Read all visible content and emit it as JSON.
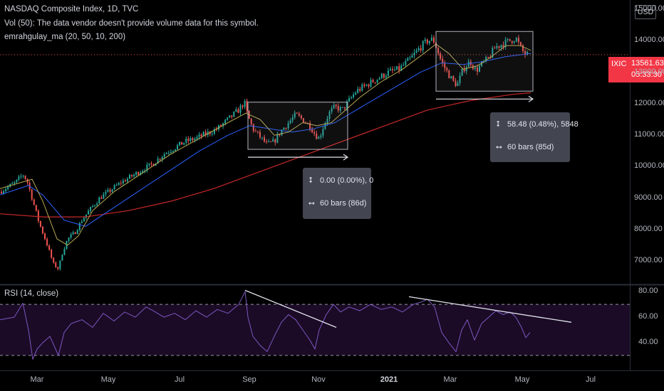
{
  "legend": {
    "title": "NASDAQ Composite Index, 1D, TVC",
    "volume_note": "Vol (50): The data vendor doesn't provide volume data for this symbol.",
    "indicator": "emrahgulay_ma (20, 50, 10, 200)"
  },
  "rsi_label": "RSI (14, close)",
  "currency": "USD",
  "price_tag": {
    "symbol": "IXIC",
    "value": "13561.63",
    "countdown": "05:33:30"
  },
  "measure_1": {
    "change": "0.00 (0.00%), 0",
    "range": "60 bars (86d)"
  },
  "measure_2": {
    "change": "58.48 (0.48%), 5848",
    "range": "60 bars (85d)"
  },
  "colors": {
    "up": "#26a69a",
    "down": "#ef5350",
    "ma20": "#b8a952",
    "ma50": "#2962ff",
    "ma200": "#c62828",
    "rsi": "#7e57c2"
  },
  "icons": {
    "price_range": "vertical-range-icon",
    "bars_range": "horizontal-range-icon"
  },
  "chart_data": [
    {
      "type": "candlestick",
      "title": "NASDAQ Composite Index, 1D, TVC",
      "x_ticks": [
        "Mar",
        "May",
        "Jul",
        "Sep",
        "Nov",
        "2021",
        "Mar",
        "May",
        "Jul"
      ],
      "y_ticks": [
        "15000.00",
        "14000.00",
        "13000.00",
        "12000.00",
        "11000.00",
        "10000.00",
        "9000.00",
        "8000.00",
        "7000.00"
      ],
      "ylim": [
        6300,
        15300
      ],
      "close_path": [
        [
          0,
          9200
        ],
        [
          22,
          9500
        ],
        [
          32,
          9750
        ],
        [
          38,
          9550
        ],
        [
          45,
          9000
        ],
        [
          55,
          8200
        ],
        [
          65,
          7600
        ],
        [
          75,
          6900
        ],
        [
          82,
          6750
        ],
        [
          88,
          7300
        ],
        [
          95,
          7700
        ],
        [
          105,
          7900
        ],
        [
          115,
          8300
        ],
        [
          125,
          8600
        ],
        [
          140,
          9000
        ],
        [
          155,
          9250
        ],
        [
          170,
          9500
        ],
        [
          185,
          9700
        ],
        [
          200,
          9900
        ],
        [
          215,
          10100
        ],
        [
          230,
          10400
        ],
        [
          245,
          10600
        ],
        [
          260,
          10800
        ],
        [
          275,
          10900
        ],
        [
          290,
          11050
        ],
        [
          305,
          11200
        ],
        [
          320,
          11500
        ],
        [
          335,
          11800
        ],
        [
          343,
          12050
        ],
        [
          348,
          11600
        ],
        [
          355,
          11200
        ],
        [
          365,
          10950
        ],
        [
          375,
          10700
        ],
        [
          385,
          10800
        ],
        [
          395,
          11150
        ],
        [
          405,
          11400
        ],
        [
          415,
          11650
        ],
        [
          425,
          11500
        ],
        [
          435,
          11300
        ],
        [
          443,
          11000
        ],
        [
          448,
          10900
        ],
        [
          455,
          11350
        ],
        [
          462,
          11700
        ],
        [
          470,
          11900
        ],
        [
          480,
          11800
        ],
        [
          490,
          12100
        ],
        [
          500,
          12400
        ],
        [
          515,
          12600
        ],
        [
          530,
          12800
        ],
        [
          545,
          13000
        ],
        [
          560,
          13100
        ],
        [
          575,
          13400
        ],
        [
          590,
          13800
        ],
        [
          600,
          14000
        ],
        [
          608,
          14050
        ],
        [
          614,
          13700
        ],
        [
          620,
          13300
        ],
        [
          628,
          13000
        ],
        [
          636,
          12700
        ],
        [
          642,
          12600
        ],
        [
          650,
          13100
        ],
        [
          660,
          13350
        ],
        [
          668,
          13050
        ],
        [
          676,
          13250
        ],
        [
          686,
          13450
        ],
        [
          695,
          13800
        ],
        [
          705,
          13900
        ],
        [
          715,
          14000
        ],
        [
          724,
          14100
        ],
        [
          730,
          13800
        ],
        [
          736,
          13600
        ],
        [
          742,
          13550
        ]
      ],
      "ma20_path": [
        [
          0,
          9300
        ],
        [
          30,
          9500
        ],
        [
          45,
          9600
        ],
        [
          60,
          8900
        ],
        [
          80,
          7700
        ],
        [
          95,
          7500
        ],
        [
          110,
          7800
        ],
        [
          130,
          8600
        ],
        [
          160,
          9200
        ],
        [
          200,
          9800
        ],
        [
          240,
          10400
        ],
        [
          280,
          10900
        ],
        [
          320,
          11400
        ],
        [
          345,
          11700
        ],
        [
          365,
          11500
        ],
        [
          385,
          11000
        ],
        [
          405,
          11100
        ],
        [
          425,
          11400
        ],
        [
          445,
          11300
        ],
        [
          465,
          11400
        ],
        [
          485,
          11800
        ],
        [
          505,
          12200
        ],
        [
          535,
          12700
        ],
        [
          565,
          13100
        ],
        [
          595,
          13600
        ],
        [
          612,
          13900
        ],
        [
          630,
          13600
        ],
        [
          650,
          13100
        ],
        [
          670,
          13200
        ],
        [
          690,
          13500
        ],
        [
          710,
          13850
        ],
        [
          730,
          13850
        ],
        [
          745,
          13700
        ]
      ],
      "ma50_path": [
        [
          0,
          9100
        ],
        [
          40,
          9400
        ],
        [
          60,
          9100
        ],
        [
          90,
          8300
        ],
        [
          120,
          8100
        ],
        [
          160,
          8700
        ],
        [
          200,
          9300
        ],
        [
          240,
          9900
        ],
        [
          280,
          10500
        ],
        [
          320,
          11000
        ],
        [
          350,
          11300
        ],
        [
          380,
          11200
        ],
        [
          410,
          11100
        ],
        [
          440,
          11200
        ],
        [
          470,
          11400
        ],
        [
          500,
          11800
        ],
        [
          530,
          12200
        ],
        [
          560,
          12600
        ],
        [
          590,
          13000
        ],
        [
          620,
          13300
        ],
        [
          650,
          13250
        ],
        [
          680,
          13350
        ],
        [
          710,
          13500
        ],
        [
          745,
          13600
        ]
      ],
      "ma200_path": [
        [
          0,
          8500
        ],
        [
          60,
          8400
        ],
        [
          120,
          8400
        ],
        [
          180,
          8600
        ],
        [
          240,
          8900
        ],
        [
          300,
          9300
        ],
        [
          360,
          9800
        ],
        [
          420,
          10300
        ],
        [
          480,
          10800
        ],
        [
          540,
          11300
        ],
        [
          600,
          11800
        ],
        [
          660,
          12100
        ],
        [
          720,
          12300
        ],
        [
          745,
          12350
        ]
      ],
      "consolidation_boxes": [
        {
          "x": [
            348,
            488
          ],
          "y": [
            10550,
            12050
          ]
        },
        {
          "x": [
            612,
            748
          ],
          "y": [
            12400,
            14300
          ]
        }
      ],
      "horizontal_arrows": [
        {
          "x": [
            348,
            488
          ],
          "y": 10300
        },
        {
          "x": [
            612,
            748
          ],
          "y": 12150
        }
      ]
    },
    {
      "type": "line",
      "title": "RSI (14, close)",
      "y_ticks": [
        "80.00",
        "60.00",
        "40.00"
      ],
      "ylim": [
        20,
        84
      ],
      "band": [
        30,
        70
      ],
      "values_path": [
        [
          0,
          58
        ],
        [
          20,
          60
        ],
        [
          32,
          71
        ],
        [
          40,
          50
        ],
        [
          46,
          27
        ],
        [
          52,
          35
        ],
        [
          60,
          40
        ],
        [
          70,
          45
        ],
        [
          82,
          30
        ],
        [
          90,
          48
        ],
        [
          100,
          55
        ],
        [
          115,
          58
        ],
        [
          130,
          52
        ],
        [
          145,
          63
        ],
        [
          160,
          57
        ],
        [
          175,
          64
        ],
        [
          190,
          60
        ],
        [
          205,
          68
        ],
        [
          215,
          65
        ],
        [
          230,
          60
        ],
        [
          245,
          63
        ],
        [
          260,
          58
        ],
        [
          275,
          65
        ],
        [
          290,
          60
        ],
        [
          305,
          66
        ],
        [
          320,
          63
        ],
        [
          335,
          70
        ],
        [
          344,
          80
        ],
        [
          348,
          60
        ],
        [
          355,
          45
        ],
        [
          365,
          38
        ],
        [
          375,
          33
        ],
        [
          385,
          45
        ],
        [
          395,
          56
        ],
        [
          405,
          62
        ],
        [
          415,
          58
        ],
        [
          425,
          50
        ],
        [
          435,
          42
        ],
        [
          442,
          35
        ],
        [
          448,
          50
        ],
        [
          458,
          62
        ],
        [
          468,
          70
        ],
        [
          478,
          64
        ],
        [
          490,
          68
        ],
        [
          505,
          65
        ],
        [
          520,
          70
        ],
        [
          535,
          66
        ],
        [
          550,
          68
        ],
        [
          565,
          64
        ],
        [
          580,
          70
        ],
        [
          592,
          72
        ],
        [
          600,
          74
        ],
        [
          610,
          68
        ],
        [
          620,
          48
        ],
        [
          630,
          40
        ],
        [
          640,
          33
        ],
        [
          648,
          50
        ],
        [
          656,
          58
        ],
        [
          666,
          42
        ],
        [
          676,
          55
        ],
        [
          686,
          60
        ],
        [
          696,
          65
        ],
        [
          706,
          62
        ],
        [
          716,
          64
        ],
        [
          724,
          60
        ],
        [
          732,
          52
        ],
        [
          738,
          44
        ],
        [
          744,
          48
        ]
      ],
      "trendlines": [
        {
          "from": [
            344,
            81
          ],
          "to": [
            472,
            52
          ]
        },
        {
          "from": [
            574,
            76
          ],
          "to": [
            802,
            56
          ]
        }
      ]
    }
  ]
}
